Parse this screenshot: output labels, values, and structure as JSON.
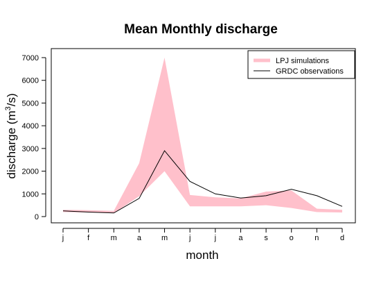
{
  "chart_data": {
    "type": "area",
    "title": "Mean Monthly discharge",
    "xlabel": "month",
    "ylabel": "discharge (m",
    "ylabel_sup": "3",
    "ylabel_tail": "/s)",
    "categories": [
      "j",
      "f",
      "m",
      "a",
      "m",
      "j",
      "j",
      "a",
      "s",
      "o",
      "n",
      "d"
    ],
    "ylim": [
      -200,
      7200
    ],
    "yticks": [
      0,
      1000,
      2000,
      3000,
      4000,
      5000,
      6000,
      7000
    ],
    "legend_position": "top-right",
    "series": [
      {
        "name": "LPJ simulations",
        "kind": "band",
        "color": "#ffc0cb",
        "lower": [
          200,
          180,
          150,
          900,
          2000,
          450,
          450,
          450,
          500,
          380,
          200,
          180
        ],
        "upper": [
          300,
          280,
          250,
          2350,
          7000,
          950,
          850,
          800,
          1100,
          1150,
          350,
          300
        ]
      },
      {
        "name": "GRDC observations",
        "kind": "line",
        "color": "#000000",
        "values": [
          250,
          200,
          160,
          800,
          2900,
          1550,
          1000,
          820,
          920,
          1200,
          920,
          450
        ]
      }
    ]
  }
}
